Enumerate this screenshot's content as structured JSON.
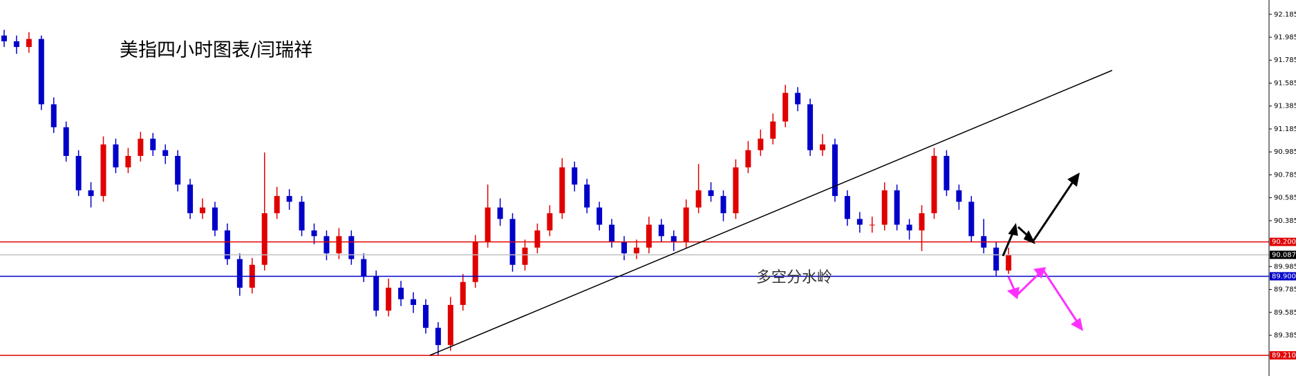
{
  "chart_data": {
    "type": "candlestick",
    "title": "美指四小时图表/闫瑞祥",
    "annotation": "多空分水岭",
    "ylim": [
      89.03,
      92.31
    ],
    "yticks": [
      92.185,
      91.985,
      91.785,
      91.585,
      91.385,
      91.185,
      90.985,
      90.785,
      90.585,
      90.385,
      89.985,
      89.785,
      89.585,
      89.385
    ],
    "up_color": "#e00000",
    "down_color": "#0000c8",
    "levels": [
      {
        "value": 90.2,
        "label": "90.200",
        "color": "#e00000",
        "line_color": "#e00000"
      },
      {
        "value": 90.087,
        "label": "90.087",
        "color": "#000000",
        "line_color": "#c0c0c0"
      },
      {
        "value": 89.9,
        "label": "89.900",
        "color": "#0000c8",
        "line_color": "#0000c8"
      },
      {
        "value": 89.21,
        "label": "89.210",
        "color": "#e00000",
        "line_color": "#e00000"
      }
    ],
    "open": [
      92.0,
      91.95,
      91.9,
      91.97,
      91.4,
      91.2,
      90.95,
      90.65,
      90.6,
      91.05,
      90.85,
      90.95,
      91.1,
      91.0,
      90.95,
      90.7,
      90.45,
      90.5,
      90.3,
      90.05,
      89.8,
      90.0,
      90.45,
      90.6,
      90.55,
      90.3,
      90.25,
      90.1,
      90.25,
      90.05,
      89.9,
      89.6,
      89.8,
      89.7,
      89.65,
      89.45,
      89.3,
      89.65,
      89.85,
      90.2,
      90.5,
      90.4,
      90.0,
      90.15,
      90.3,
      90.45,
      90.85,
      90.7,
      90.5,
      90.35,
      90.2,
      90.1,
      90.15,
      90.35,
      90.25,
      90.2,
      90.5,
      90.65,
      90.6,
      90.45,
      90.85,
      91.0,
      91.1,
      91.25,
      91.5,
      91.4,
      91.0,
      91.05,
      90.6,
      90.4,
      90.35,
      90.35,
      90.65,
      90.35,
      90.3,
      90.45,
      90.95,
      90.65,
      90.55,
      90.25,
      90.15,
      89.95
    ],
    "high": [
      92.05,
      92.0,
      92.03,
      92.0,
      91.46,
      91.25,
      91.0,
      90.72,
      91.12,
      91.1,
      91.02,
      91.16,
      91.15,
      91.05,
      91.0,
      90.75,
      90.58,
      90.55,
      90.36,
      90.1,
      90.06,
      90.98,
      90.68,
      90.66,
      90.6,
      90.36,
      90.3,
      90.32,
      90.3,
      90.1,
      89.95,
      89.88,
      89.86,
      89.76,
      89.7,
      89.5,
      89.72,
      89.92,
      90.26,
      90.7,
      90.58,
      90.45,
      90.22,
      90.36,
      90.52,
      90.93,
      90.9,
      90.75,
      90.55,
      90.4,
      90.25,
      90.22,
      90.42,
      90.4,
      90.3,
      90.57,
      90.88,
      90.72,
      90.65,
      90.92,
      91.08,
      91.18,
      91.32,
      91.57,
      91.55,
      91.45,
      91.14,
      91.1,
      90.65,
      90.46,
      90.42,
      90.72,
      90.7,
      90.4,
      90.52,
      91.02,
      91.0,
      90.7,
      90.6,
      90.4,
      90.2,
      90.15
    ],
    "low": [
      91.9,
      91.84,
      91.85,
      91.35,
      91.15,
      90.9,
      90.6,
      90.5,
      90.55,
      90.8,
      90.8,
      90.9,
      90.95,
      90.88,
      90.64,
      90.4,
      90.4,
      90.25,
      90.0,
      89.73,
      89.75,
      89.95,
      90.4,
      90.48,
      90.25,
      90.18,
      90.04,
      90.05,
      90.0,
      89.85,
      89.55,
      89.55,
      89.64,
      89.58,
      89.4,
      89.21,
      89.25,
      89.6,
      89.8,
      90.15,
      90.34,
      89.94,
      89.95,
      90.1,
      90.25,
      90.4,
      90.64,
      90.45,
      90.3,
      90.15,
      90.04,
      90.05,
      90.1,
      90.2,
      90.12,
      90.15,
      90.45,
      90.55,
      90.38,
      90.4,
      90.8,
      90.95,
      91.05,
      91.2,
      91.34,
      90.95,
      90.95,
      90.55,
      90.34,
      90.28,
      90.28,
      90.3,
      90.3,
      90.22,
      90.12,
      90.4,
      90.6,
      90.48,
      90.2,
      90.1,
      89.9,
      89.92
    ],
    "close": [
      91.95,
      91.9,
      91.97,
      91.4,
      91.2,
      90.95,
      90.65,
      90.6,
      91.05,
      90.85,
      90.95,
      91.1,
      91.0,
      90.95,
      90.7,
      90.45,
      90.5,
      90.3,
      90.05,
      89.8,
      90.0,
      90.45,
      90.6,
      90.55,
      90.3,
      90.25,
      90.1,
      90.25,
      90.05,
      89.9,
      89.6,
      89.8,
      89.7,
      89.65,
      89.45,
      89.3,
      89.65,
      89.85,
      90.2,
      90.5,
      90.4,
      90.0,
      90.15,
      90.3,
      90.45,
      90.85,
      90.7,
      90.5,
      90.35,
      90.2,
      90.1,
      90.15,
      90.35,
      90.25,
      90.2,
      90.5,
      90.65,
      90.6,
      90.45,
      90.85,
      91.0,
      91.1,
      91.25,
      91.5,
      91.4,
      91.0,
      91.05,
      90.6,
      90.4,
      90.35,
      90.35,
      90.65,
      90.35,
      90.3,
      90.45,
      90.95,
      90.65,
      90.55,
      90.25,
      90.15,
      89.95,
      90.09
    ]
  }
}
